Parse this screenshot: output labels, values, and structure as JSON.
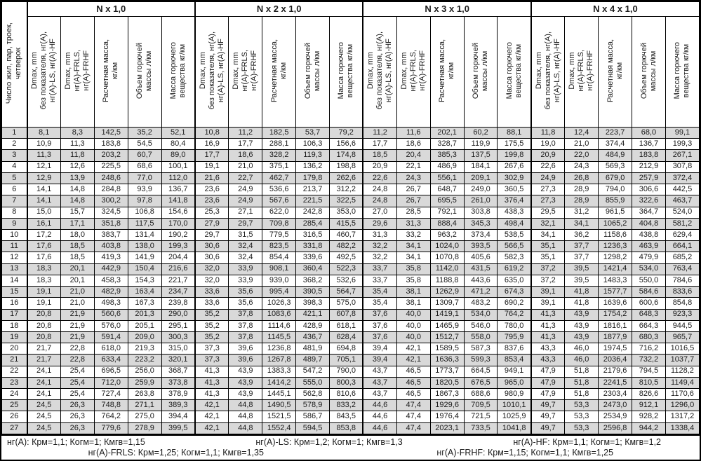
{
  "table": {
    "row_header": "Число жил, пар, троек,\nчетверок",
    "groups": [
      "N x 1,0",
      "N x 2 x 1,0",
      "N x 3 x 1,0",
      "N x 4 x 1,0"
    ],
    "subheaders": [
      "Dmax, mm\nбез показателя, нг(А),\nнг(А)-LS, нг(А)-HF",
      "Dmax, mm\nнг(А)-FRLS,\nнг(А)-FRHF",
      "Расчетная масса,\nкг/км",
      "Объем горючей\nмассы л/км",
      "Масса горючего\nвещества кг/км"
    ],
    "rows": [
      {
        "n": "1",
        "c": [
          "8,1",
          "8,3",
          "142,5",
          "35,2",
          "52,1",
          "10,8",
          "11,2",
          "182,5",
          "53,7",
          "79,2",
          "11,2",
          "11,6",
          "202,1",
          "60,2",
          "88,1",
          "11,8",
          "12,4",
          "223,7",
          "68,0",
          "99,1"
        ]
      },
      {
        "n": "2",
        "c": [
          "10,9",
          "11,3",
          "183,8",
          "54,5",
          "80,4",
          "16,9",
          "17,7",
          "288,1",
          "106,3",
          "156,6",
          "17,7",
          "18,6",
          "328,7",
          "119,9",
          "175,5",
          "19,0",
          "21,0",
          "374,4",
          "136,7",
          "199,3"
        ]
      },
      {
        "n": "3",
        "c": [
          "11,3",
          "11,8",
          "203,2",
          "60,7",
          "89,0",
          "17,7",
          "18,6",
          "328,2",
          "119,3",
          "174,8",
          "18,5",
          "20,4",
          "385,3",
          "137,5",
          "199,8",
          "20,9",
          "22,0",
          "484,9",
          "183,8",
          "267,1"
        ]
      },
      {
        "n": "4",
        "c": [
          "12,1",
          "12,6",
          "225,5",
          "68,6",
          "100,1",
          "19,1",
          "21,0",
          "375,1",
          "136,2",
          "198,8",
          "20,9",
          "22,1",
          "486,9",
          "184,1",
          "267,6",
          "22,6",
          "24,3",
          "569,3",
          "212,9",
          "307,8"
        ]
      },
      {
        "n": "5",
        "c": [
          "12,9",
          "13,9",
          "248,6",
          "77,0",
          "112,0",
          "21,6",
          "22,7",
          "462,7",
          "179,8",
          "262,6",
          "22,6",
          "24,3",
          "556,1",
          "209,1",
          "302,9",
          "24,9",
          "26,8",
          "679,0",
          "257,9",
          "372,4"
        ]
      },
      {
        "n": "6",
        "c": [
          "14,1",
          "14,8",
          "284,8",
          "93,9",
          "136,7",
          "23,6",
          "24,9",
          "536,6",
          "213,7",
          "312,2",
          "24,8",
          "26,7",
          "648,7",
          "249,0",
          "360,5",
          "27,3",
          "28,9",
          "794,0",
          "306,6",
          "442,5"
        ]
      },
      {
        "n": "7",
        "c": [
          "14,1",
          "14,8",
          "300,2",
          "97,8",
          "141,8",
          "23,6",
          "24,9",
          "567,6",
          "221,5",
          "322,5",
          "24,8",
          "26,7",
          "695,5",
          "261,0",
          "376,4",
          "27,3",
          "28,9",
          "855,9",
          "322,6",
          "463,7"
        ]
      },
      {
        "n": "8",
        "c": [
          "15,0",
          "15,7",
          "324,5",
          "106,8",
          "154,6",
          "25,3",
          "27,1",
          "622,0",
          "242,8",
          "353,0",
          "27,0",
          "28,5",
          "792,1",
          "303,8",
          "438,3",
          "29,5",
          "31,2",
          "961,5",
          "364,7",
          "524,0"
        ]
      },
      {
        "n": "9",
        "c": [
          "16,1",
          "17,1",
          "351,8",
          "117,5",
          "170,0",
          "27,9",
          "29,7",
          "709,8",
          "285,4",
          "415,5",
          "29,6",
          "31,3",
          "888,4",
          "345,3",
          "498,4",
          "32,1",
          "34,1",
          "1065,2",
          "404,8",
          "581,2"
        ]
      },
      {
        "n": "10",
        "c": [
          "17,2",
          "18,0",
          "383,7",
          "131,4",
          "190,2",
          "29,7",
          "31,5",
          "779,5",
          "316,5",
          "460,7",
          "31,3",
          "33,2",
          "963,2",
          "373,4",
          "538,5",
          "34,1",
          "36,2",
          "1158,6",
          "438,8",
          "629,4"
        ]
      },
      {
        "n": "11",
        "c": [
          "17,6",
          "18,5",
          "403,8",
          "138,0",
          "199,3",
          "30,6",
          "32,4",
          "823,5",
          "331,8",
          "482,2",
          "32,2",
          "34,1",
          "1024,0",
          "393,5",
          "566,5",
          "35,1",
          "37,7",
          "1236,3",
          "463,9",
          "664,1"
        ]
      },
      {
        "n": "12",
        "c": [
          "17,6",
          "18,5",
          "419,3",
          "141,9",
          "204,4",
          "30,6",
          "32,4",
          "854,4",
          "339,6",
          "492,5",
          "32,2",
          "34,1",
          "1070,8",
          "405,6",
          "582,3",
          "35,1",
          "37,7",
          "1298,2",
          "479,9",
          "685,2"
        ]
      },
      {
        "n": "13",
        "c": [
          "18,3",
          "20,1",
          "442,9",
          "150,4",
          "216,6",
          "32,0",
          "33,9",
          "908,1",
          "360,4",
          "522,3",
          "33,7",
          "35,8",
          "1142,0",
          "431,5",
          "619,2",
          "37,2",
          "39,5",
          "1421,4",
          "534,0",
          "763,4"
        ]
      },
      {
        "n": "14",
        "c": [
          "18,3",
          "20,1",
          "458,3",
          "154,3",
          "221,7",
          "32,0",
          "33,9",
          "939,0",
          "368,2",
          "532,6",
          "33,7",
          "35,8",
          "1188,8",
          "443,6",
          "635,0",
          "37,2",
          "39,5",
          "1483,3",
          "550,0",
          "784,6"
        ]
      },
      {
        "n": "15",
        "c": [
          "19,1",
          "21,0",
          "482,9",
          "163,4",
          "234,7",
          "33,6",
          "35,6",
          "995,4",
          "390,5",
          "564,7",
          "35,4",
          "38,1",
          "1262,9",
          "471,2",
          "674,3",
          "39,1",
          "41,8",
          "1577,7",
          "584,6",
          "833,6"
        ]
      },
      {
        "n": "16",
        "c": [
          "19,1",
          "21,0",
          "498,3",
          "167,3",
          "239,8",
          "33,6",
          "35,6",
          "1026,3",
          "398,3",
          "575,0",
          "35,4",
          "38,1",
          "1309,7",
          "483,2",
          "690,2",
          "39,1",
          "41,8",
          "1639,6",
          "600,6",
          "854,8"
        ]
      },
      {
        "n": "17",
        "c": [
          "20,8",
          "21,9",
          "560,6",
          "201,3",
          "290,0",
          "35,2",
          "37,8",
          "1083,6",
          "421,1",
          "607,8",
          "37,6",
          "40,0",
          "1419,1",
          "534,0",
          "764,2",
          "41,3",
          "43,9",
          "1754,2",
          "648,3",
          "923,3"
        ]
      },
      {
        "n": "18",
        "c": [
          "20,8",
          "21,9",
          "576,0",
          "205,1",
          "295,1",
          "35,2",
          "37,8",
          "1114,6",
          "428,9",
          "618,1",
          "37,6",
          "40,0",
          "1465,9",
          "546,0",
          "780,0",
          "41,3",
          "43,9",
          "1816,1",
          "664,3",
          "944,5"
        ]
      },
      {
        "n": "19",
        "c": [
          "20,8",
          "21,9",
          "591,4",
          "209,0",
          "300,3",
          "35,2",
          "37,8",
          "1145,5",
          "436,7",
          "628,4",
          "37,6",
          "40,0",
          "1512,7",
          "558,0",
          "795,9",
          "41,3",
          "43,9",
          "1877,9",
          "680,3",
          "965,7"
        ]
      },
      {
        "n": "20",
        "c": [
          "21,7",
          "22,8",
          "618,0",
          "219,3",
          "315,0",
          "37,3",
          "39,6",
          "1236,8",
          "481,9",
          "694,8",
          "39,4",
          "42,1",
          "1589,5",
          "587,3",
          "837,6",
          "43,3",
          "46,0",
          "1974,5",
          "716,2",
          "1016,5"
        ]
      },
      {
        "n": "21",
        "c": [
          "21,7",
          "22,8",
          "633,4",
          "223,2",
          "320,1",
          "37,3",
          "39,6",
          "1267,8",
          "489,7",
          "705,1",
          "39,4",
          "42,1",
          "1636,3",
          "599,3",
          "853,4",
          "43,3",
          "46,0",
          "2036,4",
          "732,2",
          "1037,7"
        ]
      },
      {
        "n": "22",
        "c": [
          "24,1",
          "25,4",
          "696,5",
          "256,0",
          "368,7",
          "41,3",
          "43,9",
          "1383,3",
          "547,2",
          "790,0",
          "43,7",
          "46,5",
          "1773,7",
          "664,5",
          "949,1",
          "47,9",
          "51,8",
          "2179,6",
          "794,5",
          "1128,2"
        ]
      },
      {
        "n": "23",
        "c": [
          "24,1",
          "25,4",
          "712,0",
          "259,9",
          "373,8",
          "41,3",
          "43,9",
          "1414,2",
          "555,0",
          "800,3",
          "43,7",
          "46,5",
          "1820,5",
          "676,5",
          "965,0",
          "47,9",
          "51,8",
          "2241,5",
          "810,5",
          "1149,4"
        ]
      },
      {
        "n": "24",
        "c": [
          "24,1",
          "25,4",
          "727,4",
          "263,8",
          "378,9",
          "41,3",
          "43,9",
          "1445,1",
          "562,8",
          "810,6",
          "43,7",
          "46,5",
          "1867,3",
          "688,6",
          "980,9",
          "47,9",
          "51,8",
          "2303,4",
          "826,6",
          "1170,6"
        ]
      },
      {
        "n": "25",
        "c": [
          "24,5",
          "26,3",
          "748,8",
          "271,1",
          "389,3",
          "42,1",
          "44,8",
          "1490,5",
          "578,9",
          "833,2",
          "44,6",
          "47,4",
          "1929,6",
          "709,5",
          "1010,1",
          "49,7",
          "53,3",
          "2473,0",
          "912,1",
          "1296,0"
        ]
      },
      {
        "n": "26",
        "c": [
          "24,5",
          "26,3",
          "764,2",
          "275,0",
          "394,4",
          "42,1",
          "44,8",
          "1521,5",
          "586,7",
          "843,5",
          "44,6",
          "47,4",
          "1976,4",
          "721,5",
          "1025,9",
          "49,7",
          "53,3",
          "2534,9",
          "928,2",
          "1317,2"
        ]
      },
      {
        "n": "27",
        "c": [
          "24,5",
          "26,3",
          "779,6",
          "278,9",
          "399,5",
          "42,1",
          "44,8",
          "1552,4",
          "594,5",
          "853,8",
          "44,6",
          "47,4",
          "2023,1",
          "733,5",
          "1041,8",
          "49,7",
          "53,3",
          "2596,8",
          "944,2",
          "1338,4"
        ]
      }
    ]
  },
  "footer": {
    "line1": [
      "нг(А): Крм=1,1;  Когм=1;  Кмгв=1,15",
      "нг(А)-LS: Крм=1,2;  Когм=1;  Кмгв=1,3",
      "нг(А)-HF: Крм=1,1;  Когм=1;  Кмгв=1,2"
    ],
    "line2": [
      "нг(А)-FRLS: Крм=1,25;  Когм=1,1;  Кмгв=1,35",
      "нг(А)-FRHF: Крм=1,15;  Когм=1,1;  Кмгв=1,25"
    ]
  },
  "colors": {
    "row_shaded": "#d9d9d9",
    "border": "#000000",
    "background": "#ffffff"
  }
}
